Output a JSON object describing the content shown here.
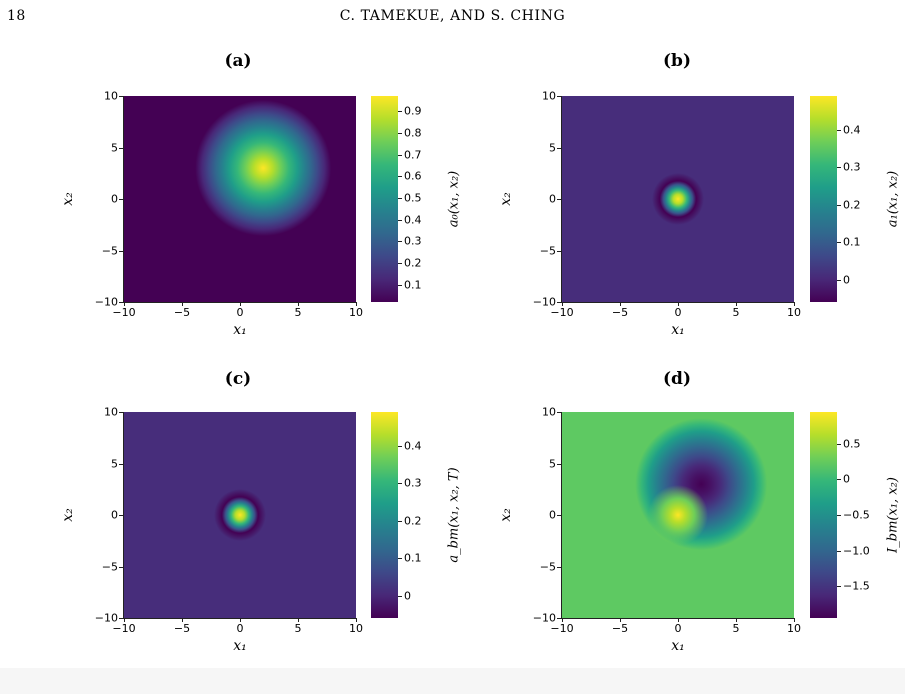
{
  "header": {
    "page_number": "18",
    "running_head": "C. TAMEKUE, AND S. CHING"
  },
  "figure": {
    "panels": [
      {
        "id": "a",
        "label": "(a)",
        "xlabel": "x₁",
        "ylabel": "x₂",
        "colorbar_label": "a₀(x₁, x₂)",
        "x_ticks": [
          "−10",
          "−5",
          "0",
          "5",
          "10"
        ],
        "y_ticks": [
          "10",
          "5",
          "0",
          "−5",
          "−10"
        ],
        "colorbar_ticks": [
          "0.9",
          "0.8",
          "0.7",
          "0.6",
          "0.5",
          "0.4",
          "0.3",
          "0.2",
          "0.1"
        ],
        "colorbar_values": [
          0.9,
          0.8,
          0.7,
          0.6,
          0.5,
          0.4,
          0.3,
          0.2,
          0.1
        ],
        "colorbar_range": [
          0.02,
          0.97
        ],
        "background_color": "#440154",
        "blobs": [
          {
            "x": 2,
            "y": 3,
            "sigma": 1.9,
            "kind": "bright",
            "color": "#fde725"
          }
        ]
      },
      {
        "id": "b",
        "label": "(b)",
        "xlabel": "x₁",
        "ylabel": "x₂",
        "colorbar_label": "a₁(x₁, x₂)",
        "x_ticks": [
          "−10",
          "−5",
          "0",
          "5",
          "10"
        ],
        "y_ticks": [
          "10",
          "5",
          "0",
          "−5",
          "−10"
        ],
        "colorbar_ticks": [
          "0.4",
          "0.3",
          "0.2",
          "0.1",
          "0"
        ],
        "colorbar_values": [
          0.4,
          0.3,
          0.2,
          0.1,
          0
        ],
        "colorbar_range": [
          -0.06,
          0.49
        ],
        "background_color": "#472d7b",
        "blobs": [
          {
            "x": 0,
            "y": 0,
            "sigma": 0.7,
            "kind": "bright",
            "color": "#fde725"
          }
        ]
      },
      {
        "id": "c",
        "label": "(c)",
        "xlabel": "x₁",
        "ylabel": "x₂",
        "colorbar_label": "a_bm(x₁, x₂, T)",
        "x_ticks": [
          "−10",
          "−5",
          "0",
          "5",
          "10"
        ],
        "y_ticks": [
          "10",
          "5",
          "0",
          "−5",
          "−10"
        ],
        "colorbar_ticks": [
          "0.4",
          "0.3",
          "0.2",
          "0.1",
          "0"
        ],
        "colorbar_values": [
          0.4,
          0.3,
          0.2,
          0.1,
          0
        ],
        "colorbar_range": [
          -0.06,
          0.49
        ],
        "background_color": "#472d7b",
        "blobs": [
          {
            "x": 0,
            "y": 0,
            "sigma": 0.7,
            "kind": "bright",
            "color": "#fde725"
          }
        ]
      },
      {
        "id": "d",
        "label": "(d)",
        "xlabel": "x₁",
        "ylabel": "x₂",
        "colorbar_label": "I_bm(x₁, x₂)",
        "x_ticks": [
          "−10",
          "−5",
          "0",
          "5",
          "10"
        ],
        "y_ticks": [
          "10",
          "5",
          "0",
          "−5",
          "−10"
        ],
        "colorbar_ticks": [
          "0.5",
          "0",
          "−0.5",
          "−1.0",
          "−1.5"
        ],
        "colorbar_values": [
          0.5,
          0,
          -0.5,
          -1.0,
          -1.5
        ],
        "colorbar_range": [
          -1.95,
          0.95
        ],
        "background_color": "#5ec962",
        "blobs": [
          {
            "x": 2,
            "y": 3,
            "sigma": 1.9,
            "kind": "dark",
            "color": "#440154"
          },
          {
            "x": 0,
            "y": 0,
            "sigma": 0.8,
            "kind": "bright",
            "color": "#fde725"
          }
        ]
      }
    ]
  }
}
